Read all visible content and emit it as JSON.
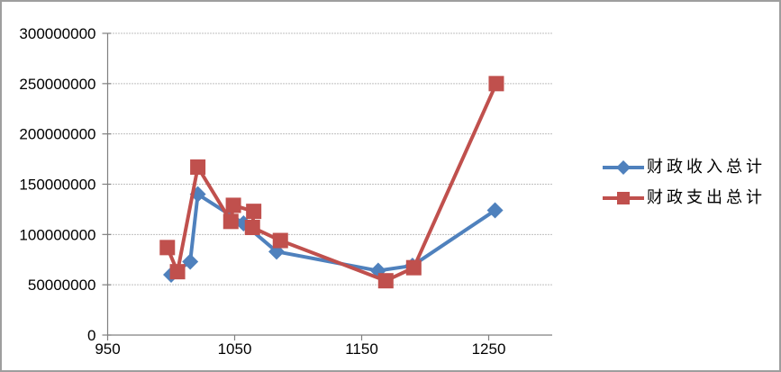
{
  "window": {
    "background": "#FFFFFF",
    "border_color": "#9E9E9E"
  },
  "chart_data": {
    "type": "line",
    "title": "",
    "xlabel": "",
    "ylabel": "",
    "grid": "horizontal-dotted",
    "grid_color": "#808080",
    "axis_color": "#808080",
    "legend_position": "right",
    "x_axis": {
      "min": 950,
      "max": 1300,
      "tick_values": [
        950,
        1050,
        1150,
        1250
      ],
      "tick_labels": [
        "950",
        "1050",
        "1150",
        "1250"
      ]
    },
    "y_axis": {
      "min": 0,
      "max": 300000000,
      "tick_step": 50000000,
      "tick_values": [
        300000000,
        250000000,
        200000000,
        150000000,
        100000000,
        50000000,
        0
      ],
      "tick_labels": [
        "300000000",
        "250000000",
        "200000000",
        "150000000",
        "100000000",
        "50000000",
        "0"
      ]
    },
    "series": [
      {
        "name": "财政收入总计",
        "color": "#4F81BD",
        "marker": "diamond",
        "points": [
          [
            1000,
            60000000
          ],
          [
            1015,
            73000000
          ],
          [
            1021,
            140000000
          ],
          [
            1057,
            111000000
          ],
          [
            1083,
            83000000
          ],
          [
            1163,
            64000000
          ],
          [
            1190,
            69000000
          ],
          [
            1255,
            124000000
          ]
        ]
      },
      {
        "name": "财政支出总计",
        "color": "#C0504D",
        "marker": "square",
        "points": [
          [
            997,
            87000000
          ],
          [
            1005,
            63000000
          ],
          [
            1021,
            167000000
          ],
          [
            1047,
            113000000
          ],
          [
            1049,
            129000000
          ],
          [
            1065,
            123000000
          ],
          [
            1064,
            107000000
          ],
          [
            1086,
            94000000
          ],
          [
            1169,
            54000000
          ],
          [
            1191,
            67000000
          ],
          [
            1256,
            250000000
          ]
        ]
      }
    ]
  }
}
